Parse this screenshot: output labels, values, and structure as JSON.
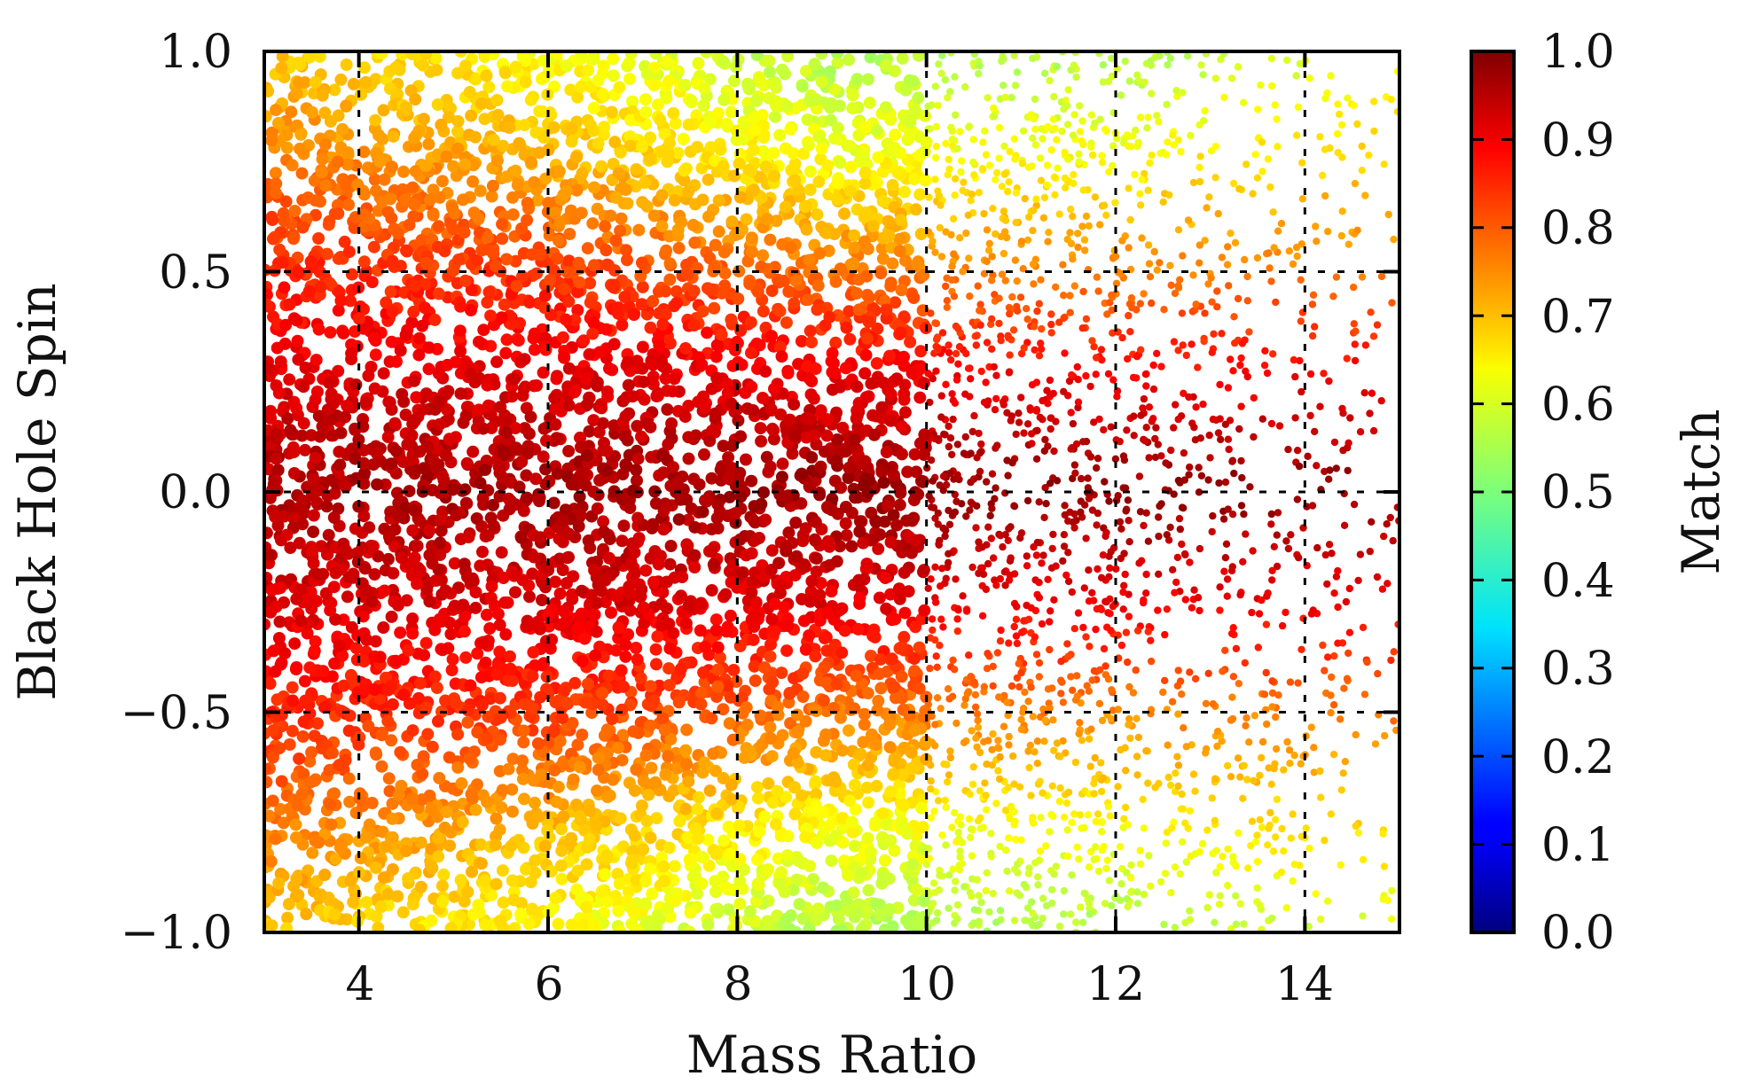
{
  "chart_data": {
    "type": "scatter",
    "title": "",
    "xlabel": "Mass Ratio",
    "ylabel": "Black Hole Spin",
    "xlim": [
      3,
      15
    ],
    "ylim": [
      -1.0,
      1.0
    ],
    "grid": true,
    "x_ticks": [
      4,
      6,
      8,
      10,
      12,
      14
    ],
    "x_tick_labels": [
      "4",
      "6",
      "8",
      "10",
      "12",
      "14"
    ],
    "y_ticks": [
      -1.0,
      -0.5,
      0.0,
      0.5,
      1.0
    ],
    "y_tick_labels": [
      "−1.0",
      "−0.5",
      "0.0",
      "0.5",
      "1.0"
    ],
    "colorbar": {
      "label": "Match",
      "colormap": "jet",
      "range": [
        0.0,
        1.0
      ],
      "ticks": [
        0.0,
        0.1,
        0.2,
        0.3,
        0.4,
        0.5,
        0.6,
        0.7,
        0.8,
        0.9,
        1.0
      ],
      "tick_labels": [
        "0.0",
        "0.1",
        "0.2",
        "0.3",
        "0.4",
        "0.5",
        "0.6",
        "0.7",
        "0.8",
        "0.9",
        "1.0"
      ]
    },
    "match_profile": {
      "description": "Approximate match value at sampled (mass ratio, spin) locations; the scatter cloud is dense for mass ratio < 10 and becomes sparse toward mass ratio 15",
      "mass_ratio": [
        3,
        6,
        9,
        12,
        15
      ],
      "spin": [
        -1.0,
        -0.75,
        -0.5,
        -0.25,
        0.0,
        0.25,
        0.5,
        0.75,
        1.0
      ],
      "match": [
        [
          0.68,
          0.76,
          0.84,
          0.91,
          0.95,
          0.91,
          0.84,
          0.76,
          0.68
        ],
        [
          0.62,
          0.7,
          0.82,
          0.91,
          0.96,
          0.91,
          0.82,
          0.7,
          0.62
        ],
        [
          0.55,
          0.62,
          0.76,
          0.9,
          0.97,
          0.9,
          0.76,
          0.62,
          0.55
        ],
        [
          0.55,
          0.63,
          0.74,
          0.89,
          0.98,
          0.89,
          0.74,
          0.63,
          0.55
        ],
        [
          0.6,
          0.67,
          0.76,
          0.89,
          0.98,
          0.89,
          0.76,
          0.67,
          0.6
        ]
      ]
    }
  }
}
